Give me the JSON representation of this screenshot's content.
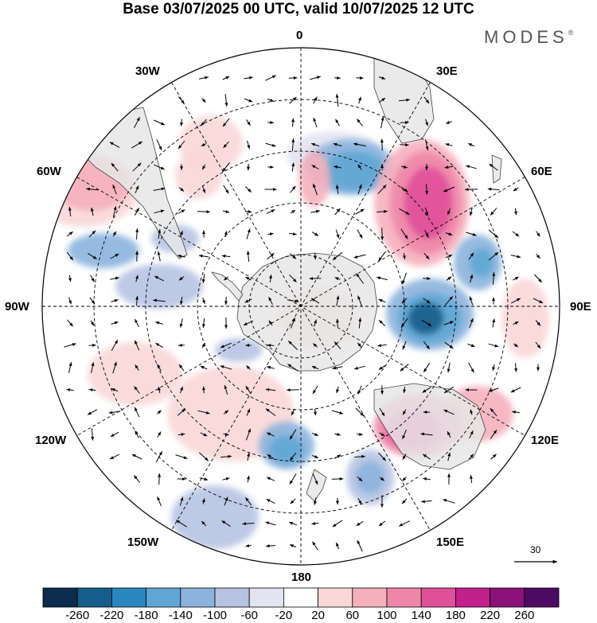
{
  "title": "Base 03/07/2025 00 UTC, valid 10/07/2025 12 UTC",
  "brand": "MODES",
  "brand_mark": "®",
  "longitude_labels": {
    "lon_0": "0",
    "lon_30e": "30E",
    "lon_60e": "60E",
    "lon_90e": "90E",
    "lon_120e": "120E",
    "lon_150e": "150E",
    "lon_180": "180",
    "lon_150w": "150W",
    "lon_120w": "120W",
    "lon_90w": "90W",
    "lon_60w": "60W",
    "lon_30w": "30W"
  },
  "reference_vector_value": "30",
  "colorbar": {
    "labels": [
      "-260",
      "-220",
      "-180",
      "-140",
      "-100",
      "-60",
      "-20",
      "20",
      "60",
      "100",
      "140",
      "180",
      "220",
      "260"
    ],
    "colors": [
      "#0b2c4c",
      "#155d8a",
      "#2b86bf",
      "#5fa6d4",
      "#8cb3dd",
      "#b7c3e3",
      "#e3e3f1",
      "#ffffff",
      "#f9d7d7",
      "#f5b0bc",
      "#ee86aa",
      "#e0509a",
      "#c2208c",
      "#8a1279",
      "#4e0b63"
    ]
  },
  "colors": {
    "land": "#e6e6e6",
    "coastline": "#444444",
    "grid": "#000000"
  }
}
